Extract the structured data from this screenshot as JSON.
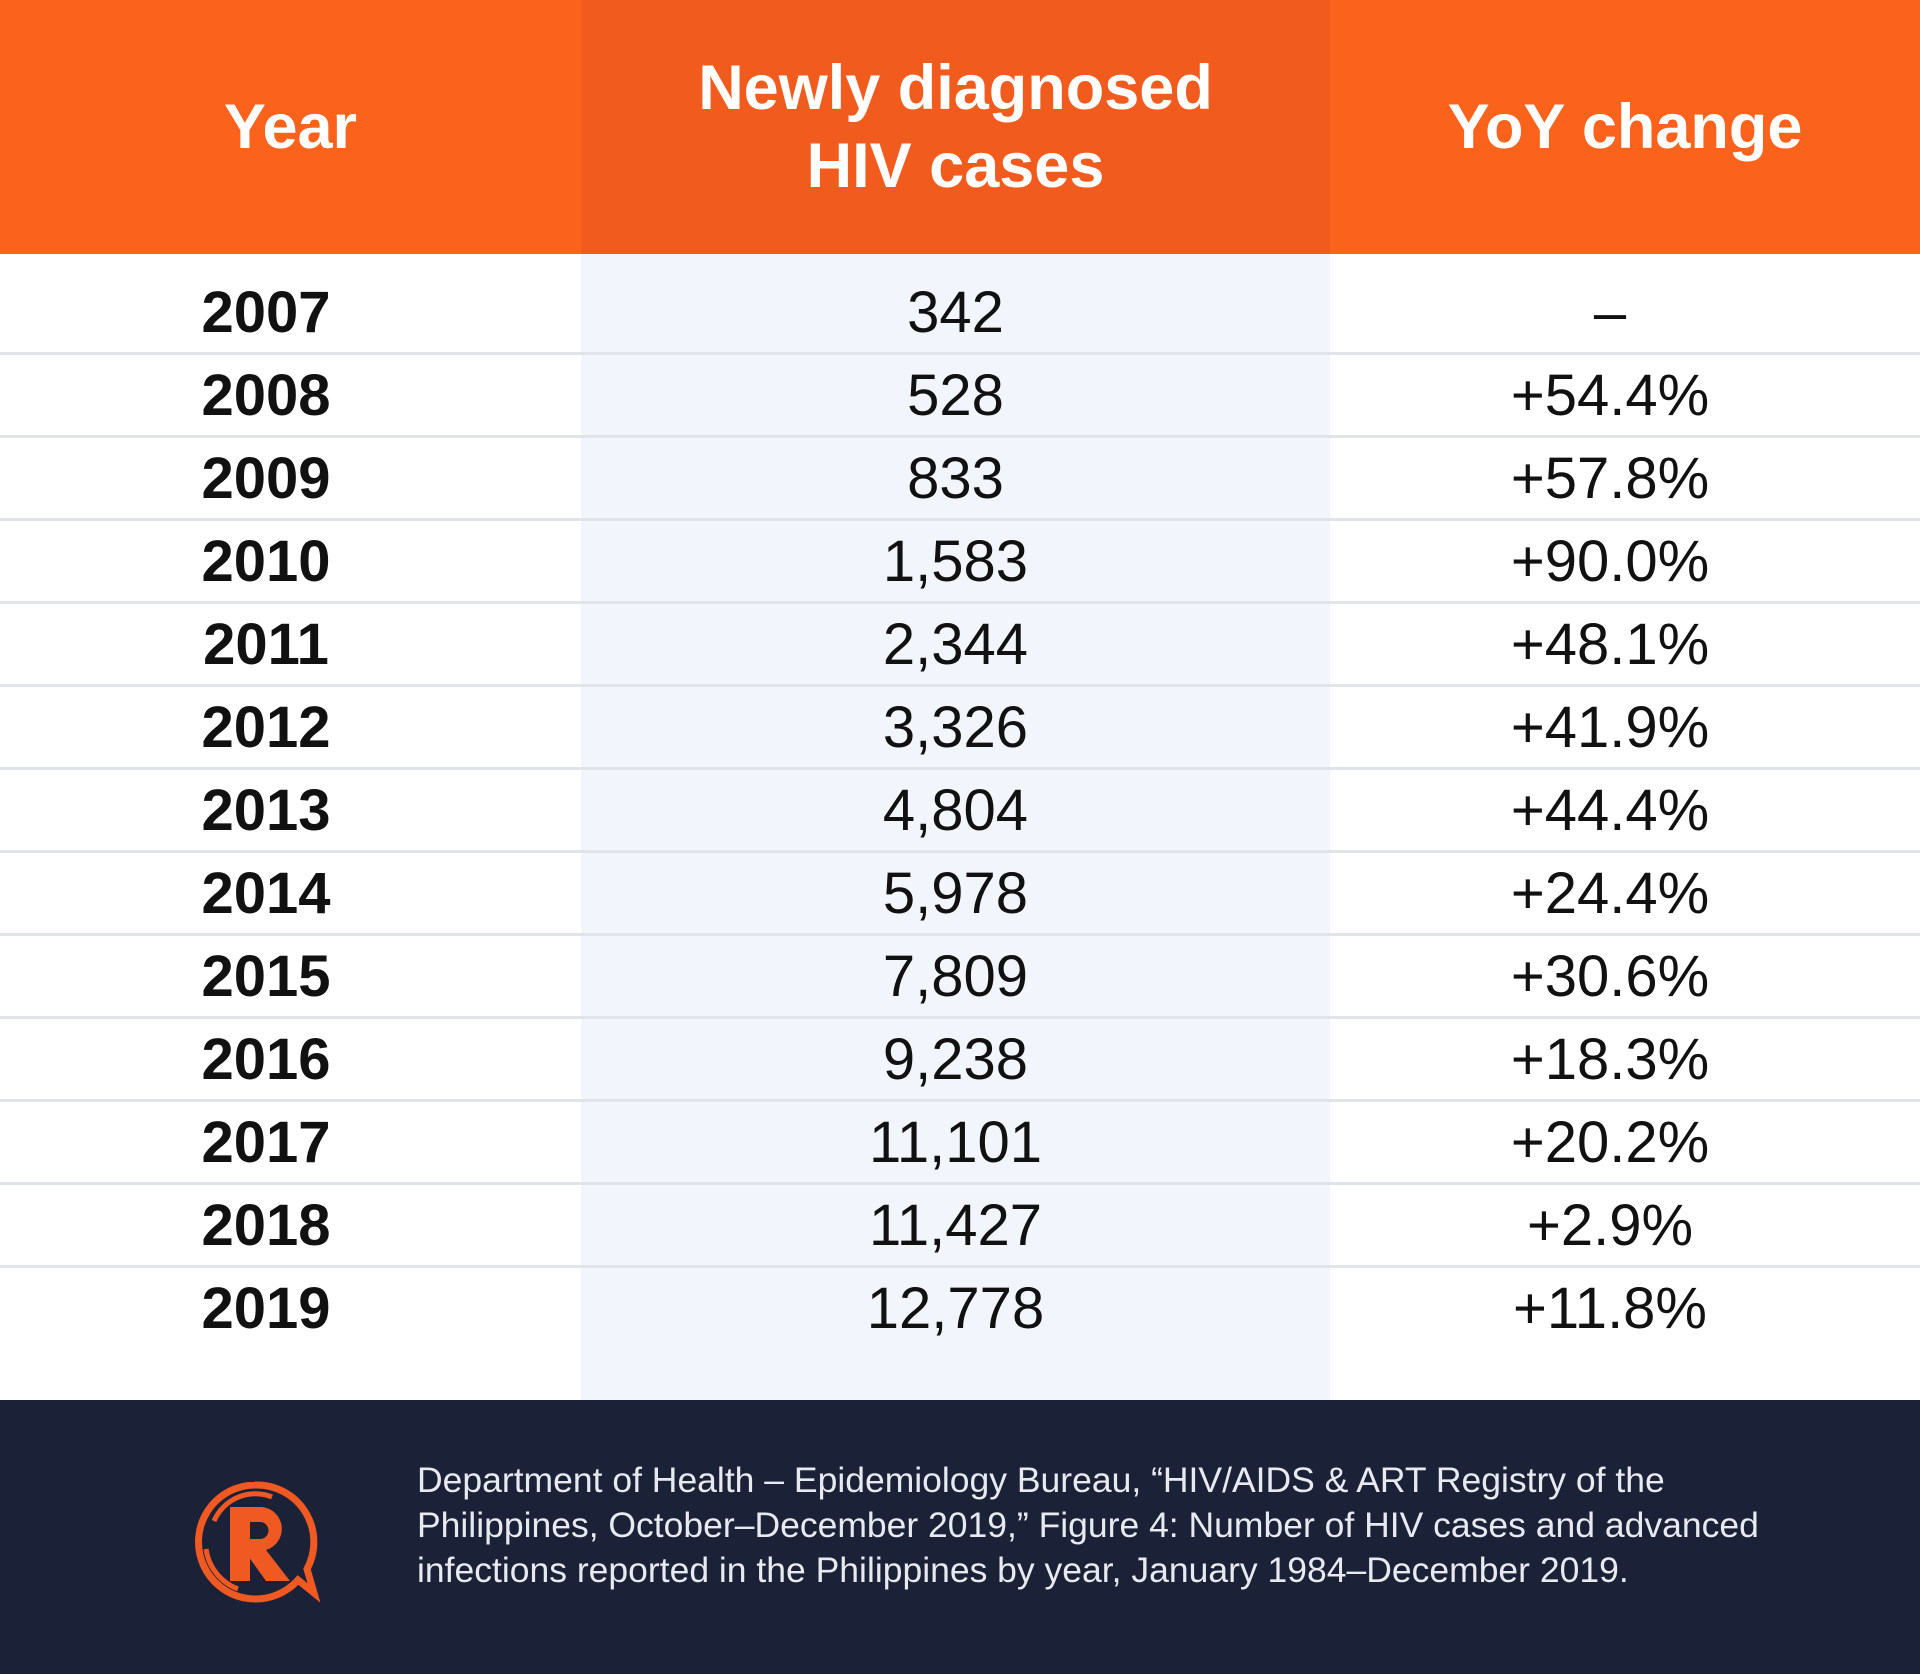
{
  "chart_data": {
    "type": "table",
    "columns": [
      "Year",
      "Newly diagnosed HIV cases",
      "YoY change"
    ],
    "header_lines": {
      "year": [
        "Year"
      ],
      "cases": [
        "Newly diagnosed",
        "HIV cases"
      ],
      "yoy": [
        "YoY change"
      ]
    },
    "rows": [
      {
        "year": "2007",
        "cases": "342",
        "yoy": "–"
      },
      {
        "year": "2008",
        "cases": "528",
        "yoy": "+54.4%"
      },
      {
        "year": "2009",
        "cases": "833",
        "yoy": "+57.8%"
      },
      {
        "year": "2010",
        "cases": "1,583",
        "yoy": "+90.0%"
      },
      {
        "year": "2011",
        "cases": "2,344",
        "yoy": "+48.1%"
      },
      {
        "year": "2012",
        "cases": "3,326",
        "yoy": "+41.9%"
      },
      {
        "year": "2013",
        "cases": "4,804",
        "yoy": "+44.4%"
      },
      {
        "year": "2014",
        "cases": "5,978",
        "yoy": "+24.4%"
      },
      {
        "year": "2015",
        "cases": "7,809",
        "yoy": "+30.6%"
      },
      {
        "year": "2016",
        "cases": "9,238",
        "yoy": "+18.3%"
      },
      {
        "year": "2017",
        "cases": "11,101",
        "yoy": "+20.2%"
      },
      {
        "year": "2018",
        "cases": "11,427",
        "yoy": "+2.9%"
      },
      {
        "year": "2019",
        "cases": "12,778",
        "yoy": "+11.8%"
      }
    ]
  },
  "footer": {
    "source_lines": [
      "Department of Health – Epidemiology Bureau, “HIV/AIDS & ART Registry of the",
      "Philippines, October–December 2019,” Figure 4: Number of HIV cases and advanced",
      "infections reported in the Philippines by year, January 1984–December 2019."
    ],
    "logo_icon": "rappler-logo-icon"
  },
  "colors": {
    "header": "#fb621b",
    "header_mid": "#f15b1e",
    "mid_column": "#f2f5fc",
    "row_divider": "#e1e4ea",
    "footer": "#1b2238",
    "logo": "#f05a22"
  }
}
